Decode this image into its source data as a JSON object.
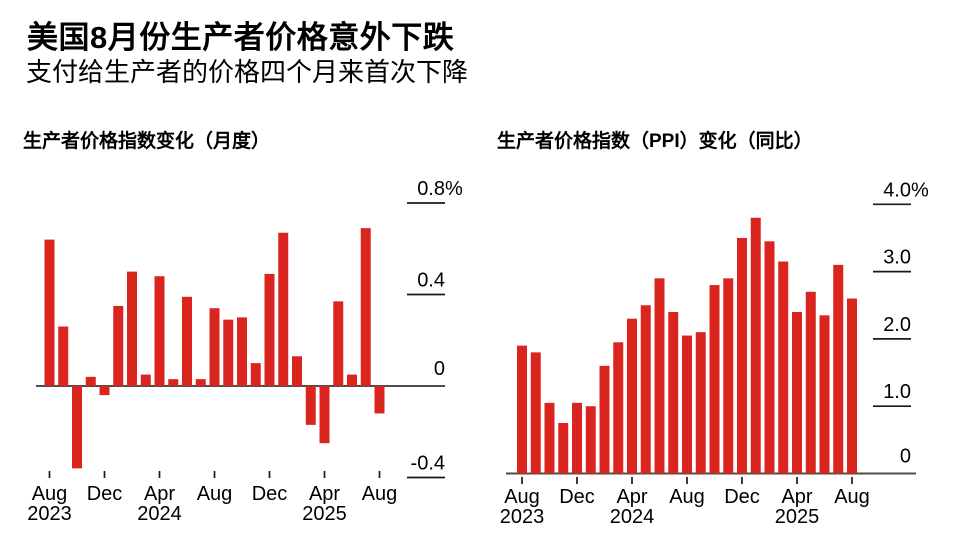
{
  "header": {
    "title": "美国8月份生产者价格意外下跌",
    "subtitle": "支付给生产者的价格四个月来首次下降"
  },
  "colors": {
    "bar": "#da251f",
    "zero_axis": "#4d4d4d",
    "tick": "#1a1a1a",
    "text": "#000000",
    "background": "#ffffff"
  },
  "chart_data": [
    {
      "type": "bar",
      "title": "生产者价格指数变化（月度）",
      "unit": "%",
      "legend": null,
      "grid": "off",
      "ylim": [
        -0.45,
        0.85
      ],
      "categories": [
        "Aug 2023",
        "Sep 2023",
        "Oct 2023",
        "Nov 2023",
        "Dec 2023",
        "Jan 2024",
        "Feb 2024",
        "Mar 2024",
        "Apr 2024",
        "May 2024",
        "Jun 2024",
        "Jul 2024",
        "Aug 2024",
        "Sep 2024",
        "Oct 2024",
        "Nov 2024",
        "Dec 2024",
        "Jan 2025",
        "Feb 2025",
        "Mar 2025",
        "Apr 2025",
        "May 2025",
        "Jun 2025",
        "Jul 2025",
        "Aug 2025"
      ],
      "values": [
        0.64,
        0.26,
        -0.36,
        0.04,
        -0.04,
        0.35,
        0.5,
        0.05,
        0.48,
        0.03,
        0.39,
        0.03,
        0.34,
        0.29,
        0.3,
        0.1,
        0.49,
        0.67,
        0.13,
        -0.17,
        -0.25,
        0.37,
        0.05,
        0.69,
        -0.12
      ],
      "yticks": [
        {
          "label": "0.8%",
          "value": 0.8
        },
        {
          "label": "0.4",
          "value": 0.4
        },
        {
          "label": "0",
          "value": 0
        },
        {
          "label": "-0.4",
          "value": -0.4
        }
      ],
      "xticks": [
        {
          "index": 0,
          "month": "Aug",
          "year": "2023"
        },
        {
          "index": 4,
          "month": "Dec",
          "year": ""
        },
        {
          "index": 8,
          "month": "Apr",
          "year": "2024"
        },
        {
          "index": 12,
          "month": "Aug",
          "year": ""
        },
        {
          "index": 16,
          "month": "Dec",
          "year": ""
        },
        {
          "index": 20,
          "month": "Apr",
          "year": "2025"
        },
        {
          "index": 24,
          "month": "Aug",
          "year": ""
        }
      ]
    },
    {
      "type": "bar",
      "title": "生产者价格指数（PPI）变化（同比）",
      "unit": "%",
      "legend": null,
      "grid": "off",
      "ylim": [
        0,
        4.0
      ],
      "categories": [
        "Aug 2023",
        "Sep 2023",
        "Oct 2023",
        "Nov 2023",
        "Dec 2023",
        "Jan 2024",
        "Feb 2024",
        "Mar 2024",
        "Apr 2024",
        "May 2024",
        "Jun 2024",
        "Jul 2024",
        "Aug 2024",
        "Sep 2024",
        "Oct 2024",
        "Nov 2024",
        "Dec 2024",
        "Jan 2025",
        "Feb 2025",
        "Mar 2025",
        "Apr 2025",
        "May 2025",
        "Jun 2025",
        "Jul 2025",
        "Aug 2025"
      ],
      "values": [
        1.9,
        1.8,
        1.05,
        0.75,
        1.05,
        1.0,
        1.6,
        1.95,
        2.3,
        2.5,
        2.9,
        2.4,
        2.05,
        2.1,
        2.8,
        2.9,
        3.5,
        3.8,
        3.45,
        3.15,
        2.4,
        2.7,
        2.35,
        3.1,
        2.6
      ],
      "yticks": [
        {
          "label": "4.0%",
          "value": 4.0
        },
        {
          "label": "3.0",
          "value": 3.0
        },
        {
          "label": "2.0",
          "value": 2.0
        },
        {
          "label": "1.0",
          "value": 1.0
        },
        {
          "label": "0",
          "value": 0
        }
      ],
      "xticks": [
        {
          "index": 0,
          "month": "Aug",
          "year": "2023"
        },
        {
          "index": 4,
          "month": "Dec",
          "year": ""
        },
        {
          "index": 8,
          "month": "Apr",
          "year": "2024"
        },
        {
          "index": 12,
          "month": "Aug",
          "year": ""
        },
        {
          "index": 16,
          "month": "Dec",
          "year": ""
        },
        {
          "index": 20,
          "month": "Apr",
          "year": "2025"
        },
        {
          "index": 24,
          "month": "Aug",
          "year": ""
        }
      ]
    }
  ]
}
